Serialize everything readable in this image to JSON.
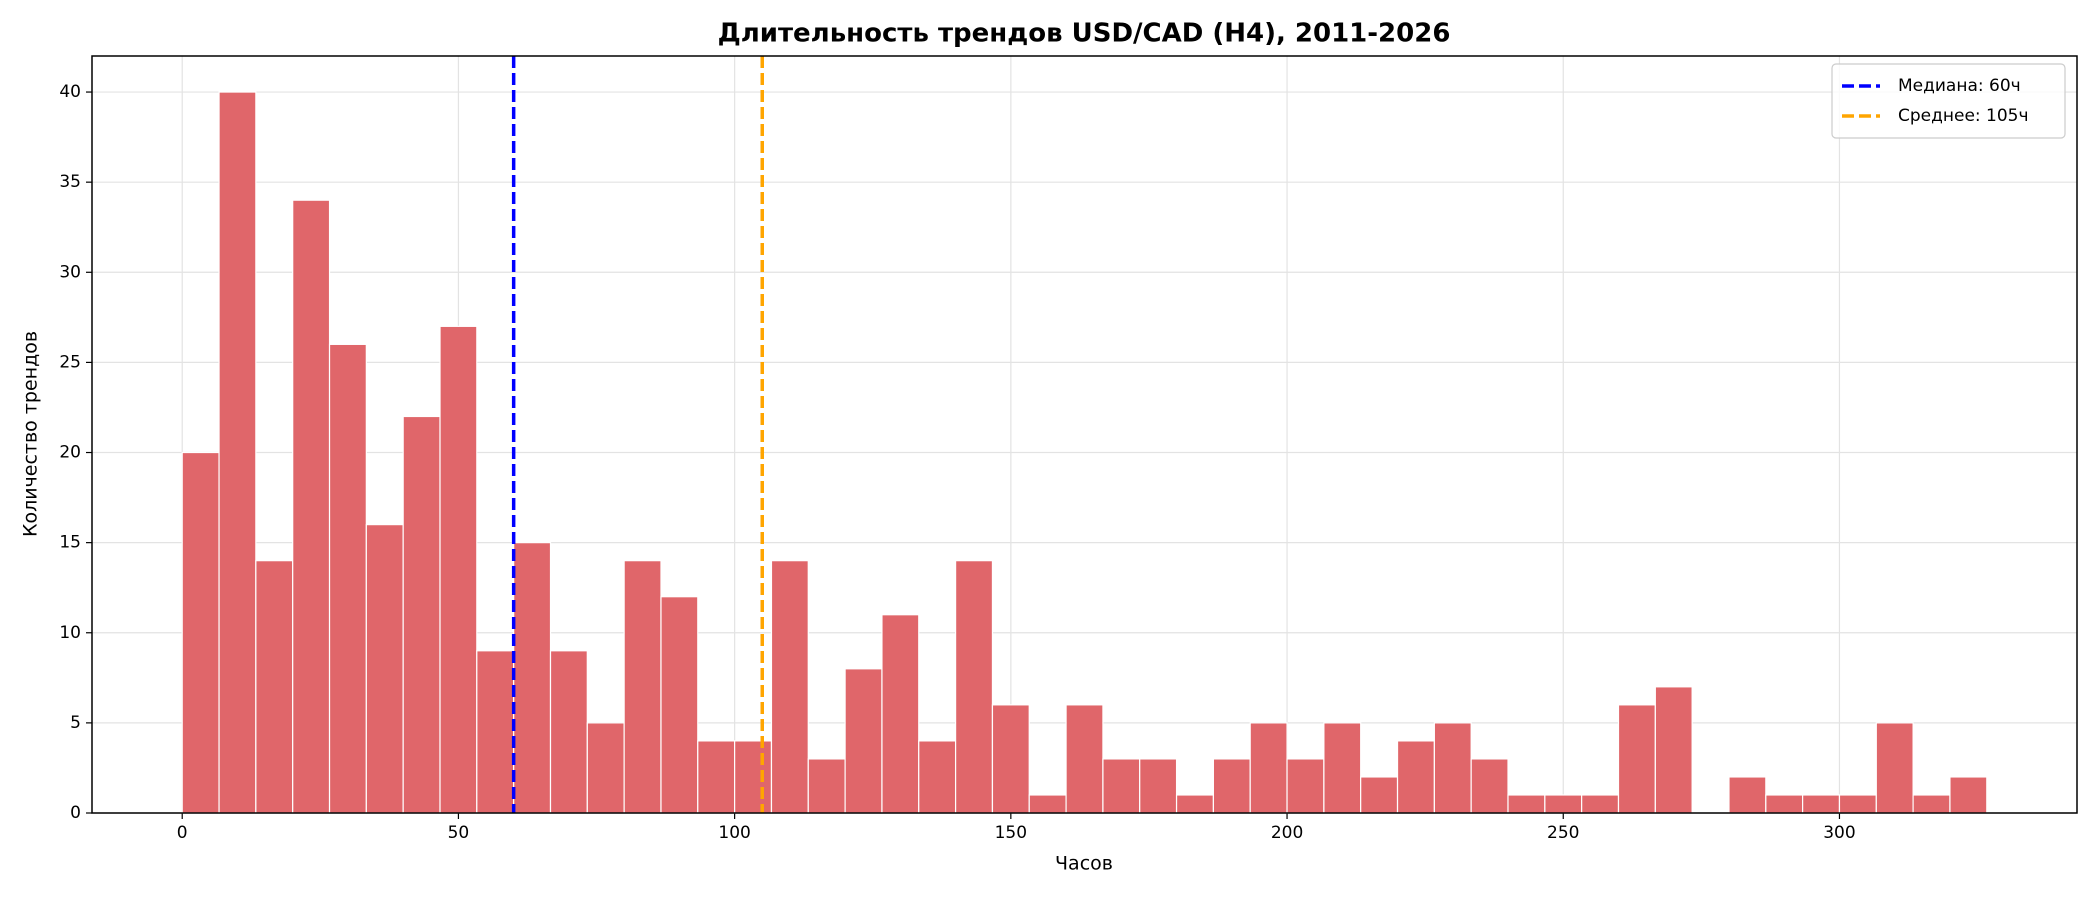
{
  "chart_data": {
    "type": "histogram",
    "title": "Длительность трендов USD/CAD (H4), 2011-2026",
    "x_label": "Часов",
    "y_label": "Количество трендов",
    "bins": [
      0,
      6.67,
      13.33,
      20,
      26.67,
      33.33,
      40,
      46.67,
      53.33,
      60,
      66.67,
      73.33,
      80,
      86.67,
      93.33,
      100,
      106.67,
      113.33,
      120,
      126.67,
      133.33,
      140,
      146.67,
      153.33,
      160,
      166.67,
      173.33,
      180,
      186.67,
      193.33,
      200,
      206.67,
      213.33,
      220,
      226.67,
      233.33,
      240,
      246.67,
      253.33,
      260,
      266.67,
      273.33,
      280,
      286.67,
      293.33,
      300,
      306.67,
      313.33,
      320,
      326.67
    ],
    "values": [
      20,
      40,
      14,
      34,
      26,
      16,
      22,
      27,
      9,
      15,
      9,
      5,
      14,
      12,
      4,
      4,
      14,
      3,
      8,
      11,
      4,
      14,
      6,
      1,
      6,
      3,
      3,
      1,
      3,
      5,
      3,
      5,
      2,
      4,
      5,
      3,
      1,
      1,
      1,
      6,
      7,
      0,
      2,
      1,
      1,
      1,
      5,
      1,
      2
    ],
    "color": "#e0666a",
    "reference_lines": [
      {
        "name": "Медиана: 60ч",
        "x": 60,
        "color": "#0000ff",
        "style": "dashed"
      },
      {
        "name": "Среднее: 105ч",
        "x": 105,
        "color": "#ffa500",
        "style": "dashed"
      }
    ],
    "xlim": [
      -16.33,
      343
    ],
    "xticks": [
      0,
      50,
      100,
      150,
      200,
      250,
      300
    ],
    "ylim": [
      0,
      42
    ],
    "yticks": [
      0,
      5,
      10,
      15,
      20,
      25,
      30,
      35,
      40
    ],
    "grid": true,
    "legend": "upper right"
  }
}
